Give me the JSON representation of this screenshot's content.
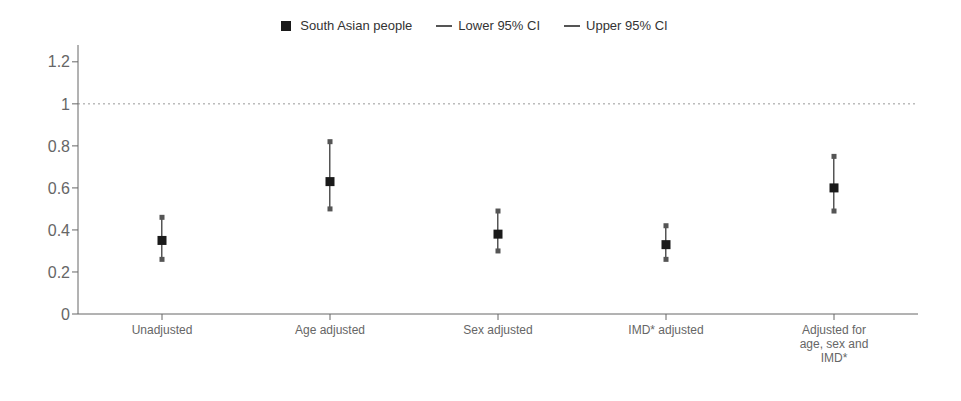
{
  "chart_data": {
    "type": "scatter",
    "categories": [
      "Unadjusted",
      "Age adjusted",
      "Sex adjusted",
      "IMD* adjusted",
      "Adjusted for\nage, sex and\nIMD*"
    ],
    "series": [
      {
        "name": "South Asian people",
        "color": "#1a1a1a",
        "marker": "square",
        "values": [
          0.35,
          0.63,
          0.38,
          0.33,
          0.6
        ]
      },
      {
        "name": "Lower 95% CI",
        "color": "#555555",
        "marker": "square",
        "line_style": "solid",
        "values": [
          0.26,
          0.5,
          0.3,
          0.26,
          0.49
        ]
      },
      {
        "name": "Upper 95% CI",
        "color": "#555555",
        "marker": "square",
        "line_style": "solid",
        "values": [
          0.46,
          0.82,
          0.49,
          0.42,
          0.75
        ]
      }
    ],
    "reference_line": {
      "value": 1,
      "color": "#999999",
      "line_style": "dotted"
    },
    "ylim": [
      0,
      1.28
    ],
    "yticks": [
      0,
      0.2,
      0.4,
      0.6,
      0.8,
      1,
      1.2
    ],
    "legend": "top"
  }
}
